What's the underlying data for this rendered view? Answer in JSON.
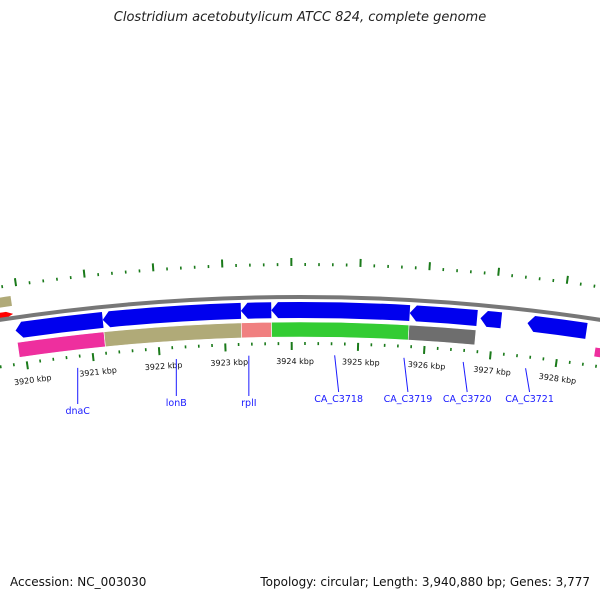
{
  "title": "Clostridium acetobutylicum ATCC 824, complete genome",
  "footer": {
    "accession": "Accession: NC_003030",
    "summary": "Topology: circular; Length: 3,940,880 bp; Genes: 3,777"
  },
  "colors": {
    "forward_strand": "#0000ee",
    "backbone": "#777777",
    "minor_tick": "#1a7a1a",
    "gene_label": "#1a1aff",
    "red_feature": "#ff0000",
    "olive": "#b0aa78",
    "pink": "#ee2f9e",
    "salmon": "#f08080",
    "green": "#33cc33",
    "grey": "#6e6e6e"
  },
  "map": {
    "view_start_kbp": 3919.55,
    "view_end_kbp": 3928.6,
    "tick_labels": [
      {
        "kbp": 3920,
        "text": "3920 kbp"
      },
      {
        "kbp": 3921,
        "text": "3921 kbp"
      },
      {
        "kbp": 3922,
        "text": "3922 kbp"
      },
      {
        "kbp": 3923,
        "text": "3923 kbp"
      },
      {
        "kbp": 3924,
        "text": "3924 kbp"
      },
      {
        "kbp": 3925,
        "text": "3925 kbp"
      },
      {
        "kbp": 3926,
        "text": "3926 kbp"
      },
      {
        "kbp": 3927,
        "text": "3927 kbp"
      },
      {
        "kbp": 3928,
        "text": "3928 kbp"
      }
    ],
    "genes": [
      {
        "start": 3919.85,
        "end": 3921.15,
        "direction": "reverse"
      },
      {
        "start": 3921.15,
        "end": 3923.2,
        "direction": "reverse"
      },
      {
        "start": 3923.2,
        "end": 3923.65,
        "direction": "reverse"
      },
      {
        "start": 3923.65,
        "end": 3925.7,
        "direction": "reverse"
      },
      {
        "start": 3925.7,
        "end": 3926.7,
        "direction": "reverse"
      },
      {
        "start": 3926.75,
        "end": 3927.06,
        "direction": "reverse"
      },
      {
        "start": 3927.45,
        "end": 3928.33,
        "direction": "reverse"
      }
    ],
    "features": [
      {
        "start": 3919.85,
        "end": 3921.15,
        "color": "pink"
      },
      {
        "start": 3921.15,
        "end": 3923.2,
        "color": "olive"
      },
      {
        "start": 3923.2,
        "end": 3923.65,
        "color": "salmon"
      },
      {
        "start": 3923.65,
        "end": 3925.7,
        "color": "green"
      },
      {
        "start": 3925.7,
        "end": 3926.7,
        "color": "grey"
      }
    ],
    "outer_features": [
      {
        "start": 3919.3,
        "end": 3919.85,
        "color": "olive",
        "shape": "bar"
      },
      {
        "start": 3919.3,
        "end": 3919.85,
        "color": "red_feature",
        "shape": "arrow"
      }
    ],
    "gene_labels": [
      {
        "text": "dnaC",
        "kbp": 3920.7
      },
      {
        "text": "lonB",
        "kbp": 3922.2
      },
      {
        "text": "rplI",
        "kbp": 3923.3
      },
      {
        "text": "CA_C3718",
        "kbp": 3924.6
      },
      {
        "text": "CA_C3719",
        "kbp": 3925.65
      },
      {
        "text": "CA_C3720",
        "kbp": 3926.55
      },
      {
        "text": "CA_C3721",
        "kbp": 3927.5
      }
    ]
  }
}
